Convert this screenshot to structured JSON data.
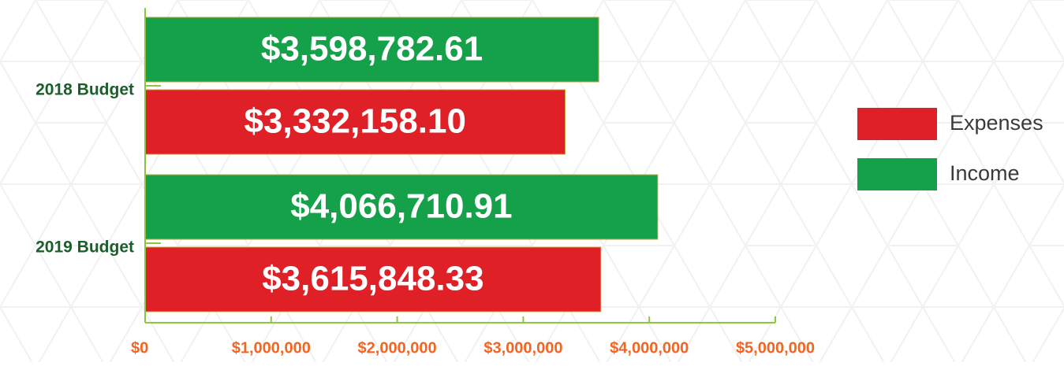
{
  "chart_data": {
    "type": "barh",
    "categories": [
      "2018 Budget",
      "2019 Budget"
    ],
    "series": [
      {
        "name": "Expenses",
        "color": "#e02027",
        "values": [
          3332158.1,
          3615848.33
        ],
        "value_labels": [
          "$3,332,158.10",
          "$3,615,848.33"
        ]
      },
      {
        "name": "Income",
        "color": "#15a14a",
        "values": [
          3598782.61,
          4066710.91
        ],
        "value_labels": [
          "$3,598,782.61",
          "$4,066,710.91"
        ]
      }
    ],
    "xlim": [
      0,
      5000000
    ],
    "xticks": [
      {
        "value": 0,
        "label": "$0"
      },
      {
        "value": 1000000,
        "label": "$1,000,000"
      },
      {
        "value": 2000000,
        "label": "$2,000,000"
      },
      {
        "value": 3000000,
        "label": "$3,000,000"
      },
      {
        "value": 4000000,
        "label": "$4,000,000"
      },
      {
        "value": 5000000,
        "label": "$5,000,000"
      }
    ],
    "legend": "right"
  }
}
